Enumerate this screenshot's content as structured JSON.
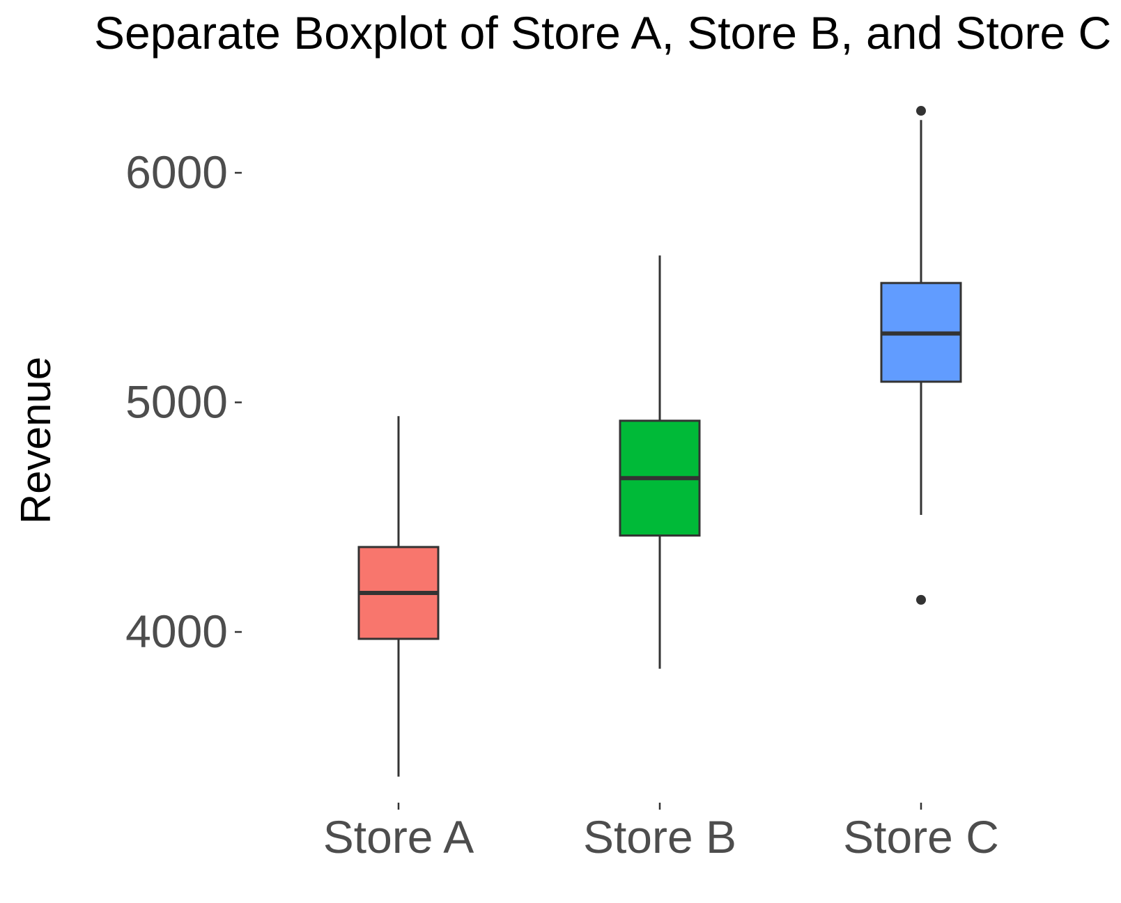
{
  "chart_data": {
    "type": "boxplot",
    "title": "Separate Boxplot of Store A, Store B, and Store C",
    "xlabel": "",
    "ylabel": "Revenue",
    "ylim": [
      3200,
      6420
    ],
    "yticks": [
      4000,
      5000,
      6000
    ],
    "grid": false,
    "legend": "none",
    "categories": [
      "Store A",
      "Store B",
      "Store C"
    ],
    "boxes": [
      {
        "category": "Store A",
        "color": "#F8766D",
        "whisker_low": 3370,
        "q1": 3970,
        "median": 4170,
        "q3": 4370,
        "whisker_high": 4940,
        "outliers": []
      },
      {
        "category": "Store B",
        "color": "#00BA38",
        "whisker_low": 3840,
        "q1": 4420,
        "median": 4670,
        "q3": 4920,
        "whisker_high": 5640,
        "outliers": []
      },
      {
        "category": "Store C",
        "color": "#619CFF",
        "whisker_low": 4510,
        "q1": 5090,
        "median": 5300,
        "q3": 5520,
        "whisker_high": 6230,
        "outliers": [
          4140,
          6270
        ]
      }
    ]
  }
}
